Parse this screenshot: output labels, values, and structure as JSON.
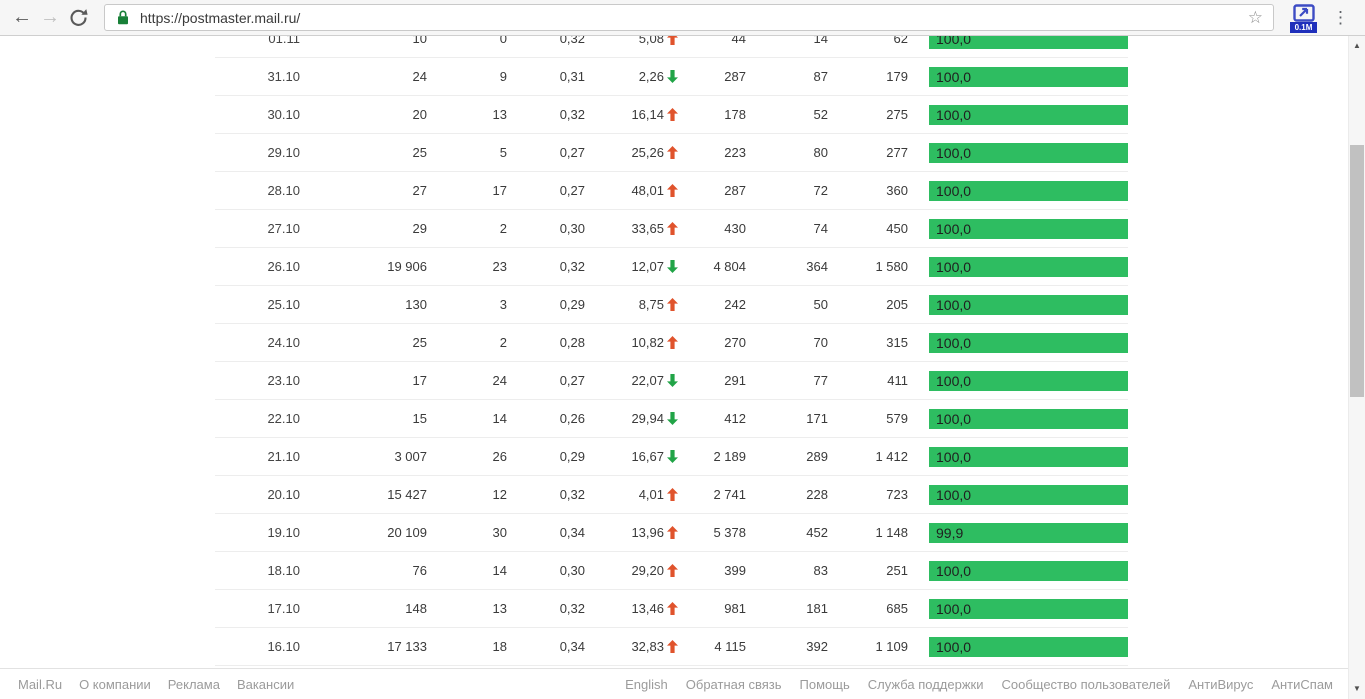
{
  "browser": {
    "url": "https://postmaster.mail.ru/",
    "extension_badge": "0.1M",
    "icons": {
      "back": "←",
      "forward": "→",
      "star": "☆",
      "menu": "⋮",
      "scroll_up": "▲",
      "scroll_down": "▼"
    }
  },
  "colors": {
    "bar_green": "#2ebd61",
    "trend_up_red": "#e0532c",
    "trend_down_green": "#21a447",
    "lock_green": "#188038",
    "badge_blue": "#1f2fbb"
  },
  "table": {
    "rows": [
      {
        "date": "01.11",
        "v1": "10",
        "v2": "0",
        "v3": "0,32",
        "trend": "5,08",
        "dir": "up",
        "v4": "44",
        "v5": "14",
        "v6": "62",
        "bar": "100,0",
        "pct": 100
      },
      {
        "date": "31.10",
        "v1": "24",
        "v2": "9",
        "v3": "0,31",
        "trend": "2,26",
        "dir": "down",
        "v4": "287",
        "v5": "87",
        "v6": "179",
        "bar": "100,0",
        "pct": 100
      },
      {
        "date": "30.10",
        "v1": "20",
        "v2": "13",
        "v3": "0,32",
        "trend": "16,14",
        "dir": "up",
        "v4": "178",
        "v5": "52",
        "v6": "275",
        "bar": "100,0",
        "pct": 100
      },
      {
        "date": "29.10",
        "v1": "25",
        "v2": "5",
        "v3": "0,27",
        "trend": "25,26",
        "dir": "up",
        "v4": "223",
        "v5": "80",
        "v6": "277",
        "bar": "100,0",
        "pct": 100
      },
      {
        "date": "28.10",
        "v1": "27",
        "v2": "17",
        "v3": "0,27",
        "trend": "48,01",
        "dir": "up",
        "v4": "287",
        "v5": "72",
        "v6": "360",
        "bar": "100,0",
        "pct": 100
      },
      {
        "date": "27.10",
        "v1": "29",
        "v2": "2",
        "v3": "0,30",
        "trend": "33,65",
        "dir": "up",
        "v4": "430",
        "v5": "74",
        "v6": "450",
        "bar": "100,0",
        "pct": 100
      },
      {
        "date": "26.10",
        "v1": "19 906",
        "v2": "23",
        "v3": "0,32",
        "trend": "12,07",
        "dir": "down",
        "v4": "4 804",
        "v5": "364",
        "v6": "1 580",
        "bar": "100,0",
        "pct": 100
      },
      {
        "date": "25.10",
        "v1": "130",
        "v2": "3",
        "v3": "0,29",
        "trend": "8,75",
        "dir": "up",
        "v4": "242",
        "v5": "50",
        "v6": "205",
        "bar": "100,0",
        "pct": 100
      },
      {
        "date": "24.10",
        "v1": "25",
        "v2": "2",
        "v3": "0,28",
        "trend": "10,82",
        "dir": "up",
        "v4": "270",
        "v5": "70",
        "v6": "315",
        "bar": "100,0",
        "pct": 100
      },
      {
        "date": "23.10",
        "v1": "17",
        "v2": "24",
        "v3": "0,27",
        "trend": "22,07",
        "dir": "down",
        "v4": "291",
        "v5": "77",
        "v6": "411",
        "bar": "100,0",
        "pct": 100
      },
      {
        "date": "22.10",
        "v1": "15",
        "v2": "14",
        "v3": "0,26",
        "trend": "29,94",
        "dir": "down",
        "v4": "412",
        "v5": "171",
        "v6": "579",
        "bar": "100,0",
        "pct": 100
      },
      {
        "date": "21.10",
        "v1": "3 007",
        "v2": "26",
        "v3": "0,29",
        "trend": "16,67",
        "dir": "down",
        "v4": "2 189",
        "v5": "289",
        "v6": "1 412",
        "bar": "100,0",
        "pct": 100
      },
      {
        "date": "20.10",
        "v1": "15 427",
        "v2": "12",
        "v3": "0,32",
        "trend": "4,01",
        "dir": "up",
        "v4": "2 741",
        "v5": "228",
        "v6": "723",
        "bar": "100,0",
        "pct": 100
      },
      {
        "date": "19.10",
        "v1": "20 109",
        "v2": "30",
        "v3": "0,34",
        "trend": "13,96",
        "dir": "up",
        "v4": "5 378",
        "v5": "452",
        "v6": "1 148",
        "bar": "99,9",
        "pct": 99.9
      },
      {
        "date": "18.10",
        "v1": "76",
        "v2": "14",
        "v3": "0,30",
        "trend": "29,20",
        "dir": "up",
        "v4": "399",
        "v5": "83",
        "v6": "251",
        "bar": "100,0",
        "pct": 100
      },
      {
        "date": "17.10",
        "v1": "148",
        "v2": "13",
        "v3": "0,32",
        "trend": "13,46",
        "dir": "up",
        "v4": "981",
        "v5": "181",
        "v6": "685",
        "bar": "100,0",
        "pct": 100
      },
      {
        "date": "16.10",
        "v1": "17 133",
        "v2": "18",
        "v3": "0,34",
        "trend": "32,83",
        "dir": "up",
        "v4": "4 115",
        "v5": "392",
        "v6": "1 109",
        "bar": "100,0",
        "pct": 100
      }
    ]
  },
  "footer": {
    "left_links": [
      "Mail.Ru",
      "О компании",
      "Реклама",
      "Вакансии"
    ],
    "right_links": [
      "English",
      "Обратная связь",
      "Помощь",
      "Служба поддержки",
      "Сообщество пользователей",
      "АнтиВирус",
      "АнтиСпам"
    ]
  }
}
